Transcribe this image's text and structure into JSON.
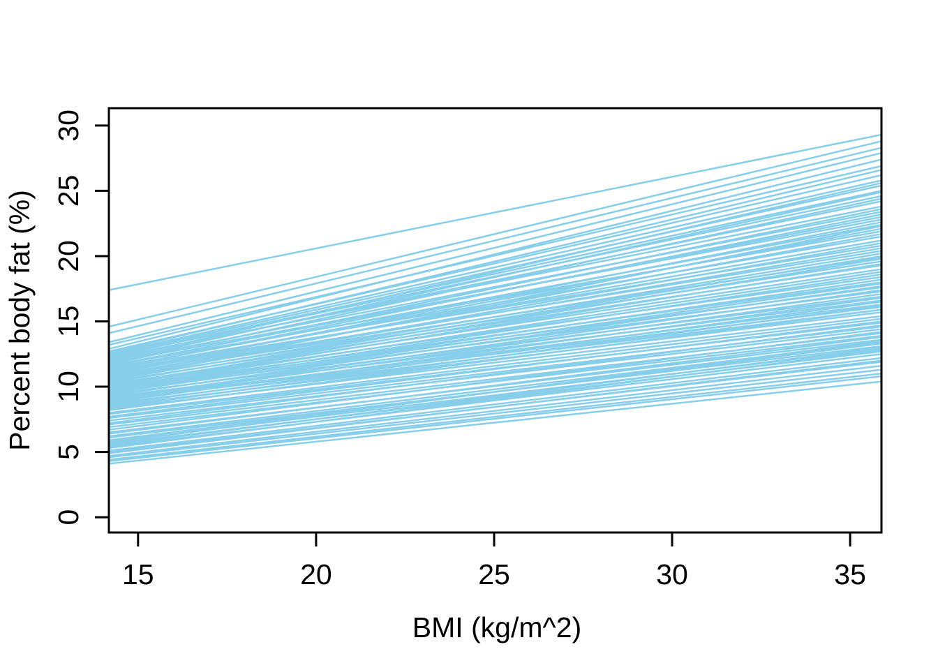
{
  "chart_data": {
    "type": "line",
    "title": "",
    "xlabel": "BMI (kg/m^2)",
    "ylabel": "Percent body fat (%)",
    "x_ticks": [
      15,
      20,
      25,
      30,
      35
    ],
    "y_ticks": [
      0,
      5,
      10,
      15,
      20,
      25,
      30
    ],
    "xlim": [
      14.18,
      35.88
    ],
    "ylim": [
      -1.17,
      31.33
    ],
    "grid": "off",
    "legend": "none",
    "line_color": "#87CEEB",
    "axis_color": "#000000",
    "background_color": "#FFFFFF",
    "lines_format": "each entry is [y_at_xmin, y_at_xmax]; every line spans the full x-range of the plot box",
    "lines": [
      [
        17.4,
        29.3
      ],
      [
        14.6,
        28.8
      ],
      [
        14.1,
        28.3
      ],
      [
        13.4,
        27.9
      ],
      [
        13.2,
        26.9
      ],
      [
        12.9,
        27.4
      ],
      [
        12.7,
        26.2
      ],
      [
        12.6,
        26.6
      ],
      [
        12.5,
        25.8
      ],
      [
        12.4,
        25.4
      ],
      [
        12.3,
        24.6
      ],
      [
        12.3,
        25.0
      ],
      [
        12.2,
        23.8
      ],
      [
        12.1,
        24.2
      ],
      [
        12.0,
        25.6
      ],
      [
        11.9,
        23.4
      ],
      [
        11.9,
        24.9
      ],
      [
        11.8,
        22.8
      ],
      [
        11.7,
        24.4
      ],
      [
        11.6,
        23.0
      ],
      [
        11.6,
        21.9
      ],
      [
        11.5,
        23.6
      ],
      [
        11.4,
        22.4
      ],
      [
        11.3,
        21.5
      ],
      [
        11.3,
        23.2
      ],
      [
        11.2,
        20.8
      ],
      [
        11.1,
        22.1
      ],
      [
        11.0,
        21.2
      ],
      [
        11.0,
        22.6
      ],
      [
        10.9,
        20.4
      ],
      [
        10.8,
        21.7
      ],
      [
        10.8,
        19.9
      ],
      [
        10.7,
        20.6
      ],
      [
        10.6,
        21.0
      ],
      [
        10.6,
        19.6
      ],
      [
        10.5,
        20.2
      ],
      [
        10.5,
        22.3
      ],
      [
        10.4,
        19.3
      ],
      [
        10.3,
        20.0
      ],
      [
        10.2,
        19.0
      ],
      [
        10.1,
        19.8
      ],
      [
        10.1,
        18.4
      ],
      [
        10.0,
        19.4
      ],
      [
        9.9,
        18.0
      ],
      [
        9.9,
        18.8
      ],
      [
        9.8,
        17.6
      ],
      [
        9.7,
        18.6
      ],
      [
        9.6,
        17.3
      ],
      [
        9.6,
        18.2
      ],
      [
        9.5,
        17.9
      ],
      [
        9.4,
        16.9
      ],
      [
        9.3,
        17.7
      ],
      [
        9.2,
        16.6
      ],
      [
        9.1,
        17.4
      ],
      [
        9.0,
        16.3
      ],
      [
        9.0,
        17.1
      ],
      [
        8.9,
        16.1
      ],
      [
        8.8,
        16.8
      ],
      [
        8.7,
        15.9
      ],
      [
        8.6,
        16.5
      ],
      [
        8.5,
        15.7
      ],
      [
        8.4,
        16.2
      ],
      [
        8.3,
        15.4
      ],
      [
        8.2,
        15.9
      ],
      [
        8.0,
        15.2
      ],
      [
        7.9,
        14.9
      ],
      [
        7.7,
        15.0
      ],
      [
        7.6,
        14.6
      ],
      [
        7.4,
        14.4
      ],
      [
        7.2,
        14.7
      ],
      [
        7.1,
        14.1
      ],
      [
        6.9,
        13.9
      ],
      [
        6.7,
        14.2
      ],
      [
        6.5,
        13.6
      ],
      [
        6.4,
        13.8
      ],
      [
        6.2,
        13.4
      ],
      [
        6.1,
        13.1
      ],
      [
        5.9,
        13.3
      ],
      [
        5.8,
        12.9
      ],
      [
        5.7,
        13.5
      ],
      [
        5.6,
        12.7
      ],
      [
        5.5,
        13.0
      ],
      [
        5.4,
        12.5
      ],
      [
        5.3,
        12.8
      ],
      [
        5.1,
        12.2
      ],
      [
        5.0,
        11.9
      ],
      [
        4.9,
        12.0
      ],
      [
        4.7,
        11.6
      ],
      [
        4.6,
        11.3
      ],
      [
        4.4,
        11.0
      ],
      [
        4.3,
        10.8
      ],
      [
        4.1,
        10.4
      ]
    ],
    "n_lines": 92
  }
}
